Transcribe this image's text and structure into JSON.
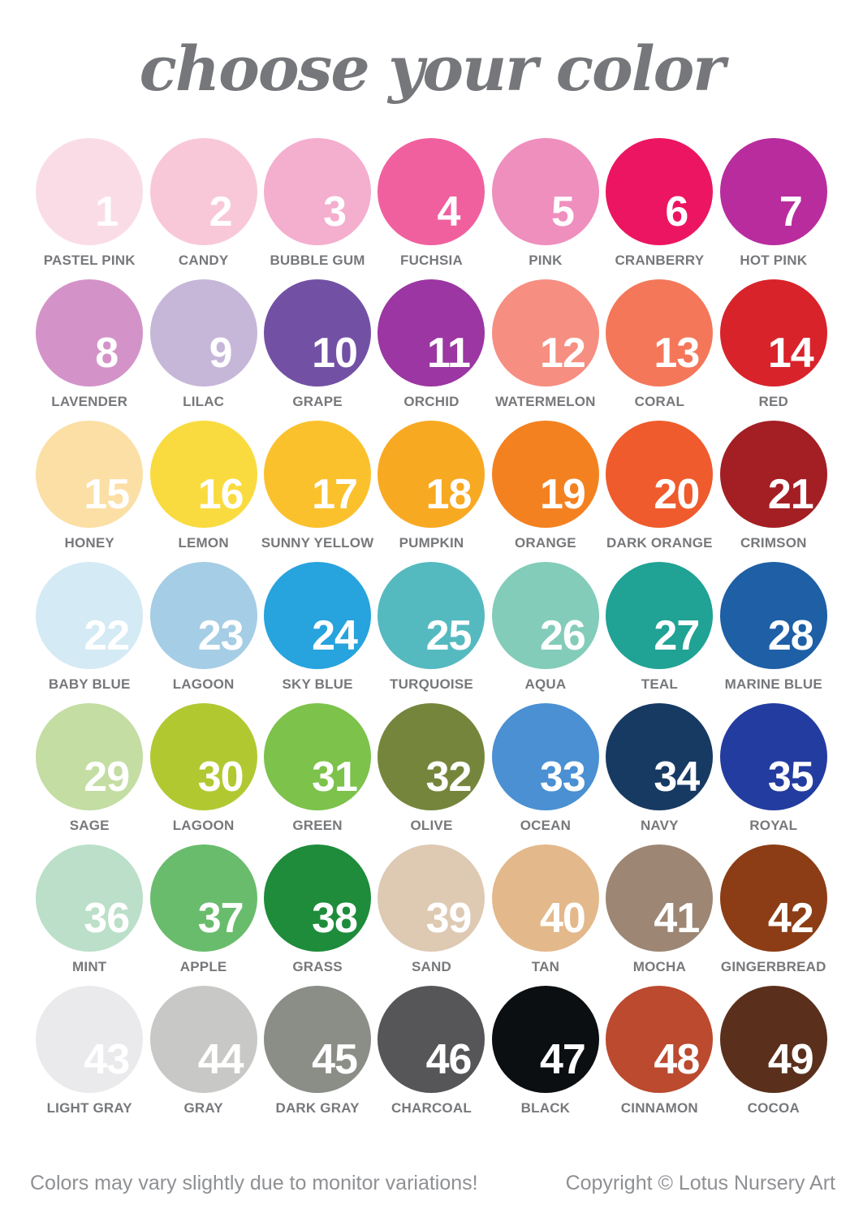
{
  "title": "choose your color",
  "title_color": "#76777B",
  "swatches": [
    {
      "number": "1",
      "label": "PASTEL PINK",
      "color": "#FADCE7"
    },
    {
      "number": "2",
      "label": "CANDY",
      "color": "#F8C8D9"
    },
    {
      "number": "3",
      "label": "BUBBLE GUM",
      "color": "#F4AECE"
    },
    {
      "number": "4",
      "label": "FUCHSIA",
      "color": "#F0609E"
    },
    {
      "number": "5",
      "label": "PINK",
      "color": "#EF8FBE"
    },
    {
      "number": "6",
      "label": "CRANBERRY",
      "color": "#EC1561"
    },
    {
      "number": "7",
      "label": "HOT PINK",
      "color": "#B92C9E"
    },
    {
      "number": "8",
      "label": "LAVENDER",
      "color": "#D393C8"
    },
    {
      "number": "9",
      "label": "LILAC",
      "color": "#C6B7D9"
    },
    {
      "number": "10",
      "label": "GRAPE",
      "color": "#7251A5"
    },
    {
      "number": "11",
      "label": "ORCHID",
      "color": "#9B36A2"
    },
    {
      "number": "12",
      "label": "WATERMELON",
      "color": "#F68E81"
    },
    {
      "number": "13",
      "label": "CORAL",
      "color": "#F4775A"
    },
    {
      "number": "14",
      "label": "RED",
      "color": "#D8232B"
    },
    {
      "number": "15",
      "label": "HONEY",
      "color": "#FBDFA5"
    },
    {
      "number": "16",
      "label": "LEMON",
      "color": "#FADB3F"
    },
    {
      "number": "17",
      "label": "SUNNY YELLOW",
      "color": "#FBC12D"
    },
    {
      "number": "18",
      "label": "PUMPKIN",
      "color": "#F8A922"
    },
    {
      "number": "19",
      "label": "ORANGE",
      "color": "#F48120"
    },
    {
      "number": "20",
      "label": "DARK ORANGE",
      "color": "#EF5B2C"
    },
    {
      "number": "21",
      "label": "CRIMSON",
      "color": "#A31F24"
    },
    {
      "number": "22",
      "label": "BABY BLUE",
      "color": "#D4EAF4"
    },
    {
      "number": "23",
      "label": "LAGOON",
      "color": "#A5CDE5"
    },
    {
      "number": "24",
      "label": "SKY BLUE",
      "color": "#27A3DD"
    },
    {
      "number": "25",
      "label": "TURQUOISE",
      "color": "#55BAC0"
    },
    {
      "number": "26",
      "label": "AQUA",
      "color": "#83CCB9"
    },
    {
      "number": "27",
      "label": "TEAL",
      "color": "#20A295"
    },
    {
      "number": "28",
      "label": "MARINE BLUE",
      "color": "#1E5FA6"
    },
    {
      "number": "29",
      "label": "SAGE",
      "color": "#C3DDA3"
    },
    {
      "number": "30",
      "label": "LAGOON",
      "color": "#B2C831"
    },
    {
      "number": "31",
      "label": "GREEN",
      "color": "#7CC24B"
    },
    {
      "number": "32",
      "label": "OLIVE",
      "color": "#75863C"
    },
    {
      "number": "33",
      "label": "OCEAN",
      "color": "#4A90D2"
    },
    {
      "number": "34",
      "label": "NAVY",
      "color": "#173A63"
    },
    {
      "number": "35",
      "label": "ROYAL",
      "color": "#233CA0"
    },
    {
      "number": "36",
      "label": "MINT",
      "color": "#BBDFC8"
    },
    {
      "number": "37",
      "label": "APPLE",
      "color": "#69BC6C"
    },
    {
      "number": "38",
      "label": "GRASS",
      "color": "#1E8C3B"
    },
    {
      "number": "39",
      "label": "SAND",
      "color": "#DEC9B3"
    },
    {
      "number": "40",
      "label": "TAN",
      "color": "#E3B88B"
    },
    {
      "number": "41",
      "label": "MOCHA",
      "color": "#9D8674"
    },
    {
      "number": "42",
      "label": "GINGERBREAD",
      "color": "#8C3D15"
    },
    {
      "number": "43",
      "label": "LIGHT GRAY",
      "color": "#EAEAEC"
    },
    {
      "number": "44",
      "label": "GRAY",
      "color": "#C8C8C6"
    },
    {
      "number": "45",
      "label": "DARK GRAY",
      "color": "#8A8E87"
    },
    {
      "number": "46",
      "label": "CHARCOAL",
      "color": "#565659"
    },
    {
      "number": "47",
      "label": "BLACK",
      "color": "#0C0F12"
    },
    {
      "number": "48",
      "label": "CINNAMON",
      "color": "#BB4A2F"
    },
    {
      "number": "49",
      "label": "COCOA",
      "color": "#5A301C"
    }
  ],
  "footer": {
    "note": "Colors may vary slightly due to monitor variations!",
    "copyright": "Copyright © Lotus Nursery Art"
  }
}
